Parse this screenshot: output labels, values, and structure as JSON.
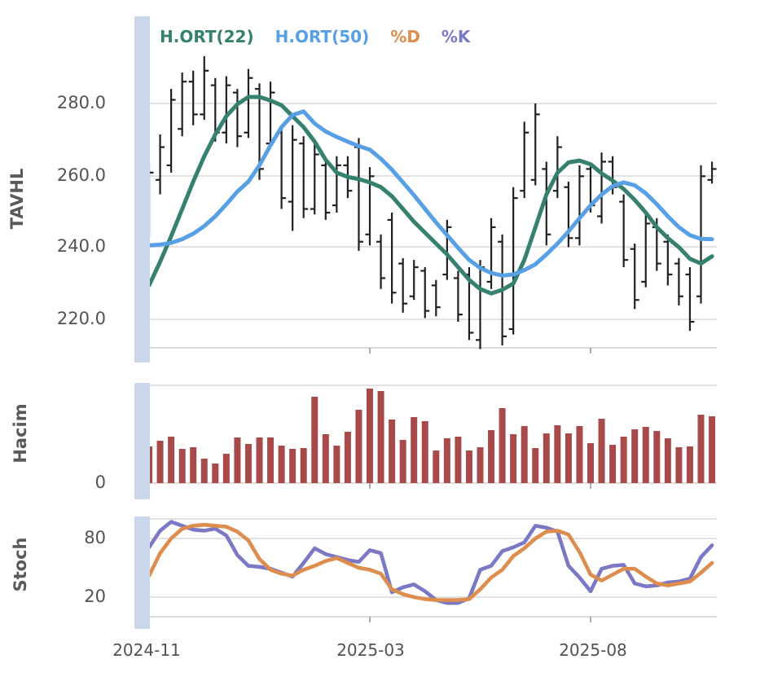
{
  "legend": {
    "items": [
      {
        "label": "H.ORT(22)",
        "color": "#35806e"
      },
      {
        "label": "H.ORT(50)",
        "color": "#57a0e6"
      },
      {
        "label": "%D",
        "color": "#dd8d4d"
      },
      {
        "label": "%K",
        "color": "#7b79c5"
      }
    ]
  },
  "panels": {
    "price": {
      "title": "TAVHL",
      "yticks": [
        "280.0",
        "260.0",
        "240.0",
        "220.0"
      ]
    },
    "volume": {
      "title": "Hacim",
      "yticks": [
        "0"
      ]
    },
    "stoch": {
      "title": "Stoch",
      "yticks": [
        "80",
        "20"
      ]
    }
  },
  "xaxis": {
    "labels": [
      "2024-11",
      "2025-03",
      "2025-08"
    ]
  },
  "colors": {
    "ohlc_bar": "#212121",
    "ma22": "#35806e",
    "ma50": "#57a0e6",
    "volume_bar": "#a84a4a",
    "stoch_d": "#dd8d4d",
    "stoch_k": "#7b79c5",
    "grid": "#d9d9d9",
    "band": "#cad6ea",
    "text": "#525252"
  },
  "chart_data": [
    {
      "type": "ohlc",
      "panel": "TAVHL",
      "ylabel": "TAVHL",
      "yticks": [
        280.0,
        260.0,
        240.0,
        220.0
      ],
      "ylim": [
        212.8,
        304.0
      ],
      "grid": true,
      "x_tick_labels": [
        "2024-11",
        "2025-03",
        "2025-08"
      ],
      "x_tick_bar_indices": [
        0,
        20,
        40
      ],
      "bars_high_low_open_close": [
        [
          263.5,
          243.5,
          246,
          261
        ],
        [
          271.5,
          255,
          259,
          268
        ],
        [
          284,
          261,
          263,
          281
        ],
        [
          288.5,
          271,
          273,
          286
        ],
        [
          289,
          274,
          286,
          277
        ],
        [
          293,
          275.5,
          277,
          289
        ],
        [
          287,
          269.5,
          285,
          272
        ],
        [
          287.5,
          269,
          272,
          285
        ],
        [
          284,
          268,
          283,
          271
        ],
        [
          289.5,
          270.5,
          272,
          287
        ],
        [
          285.5,
          259,
          284,
          262
        ],
        [
          286,
          268,
          269,
          283
        ],
        [
          273.5,
          251,
          272,
          254
        ],
        [
          274,
          245,
          253,
          270
        ],
        [
          271,
          248.5,
          269,
          251
        ],
        [
          270,
          249.5,
          251,
          266
        ],
        [
          264.5,
          248,
          263,
          250
        ],
        [
          265.5,
          250,
          252,
          263
        ],
        [
          265.5,
          254,
          263,
          256
        ],
        [
          270.5,
          239.5,
          268,
          242
        ],
        [
          262.5,
          241,
          244,
          260
        ],
        [
          244,
          229,
          242,
          232
        ],
        [
          250,
          225,
          248,
          228
        ],
        [
          237.5,
          222.5,
          236,
          225
        ],
        [
          237,
          226,
          227,
          235
        ],
        [
          235,
          221,
          234,
          223
        ],
        [
          231.5,
          221.5,
          230,
          224
        ],
        [
          248,
          231.5,
          233,
          246
        ],
        [
          234,
          220,
          232,
          222
        ],
        [
          235,
          215,
          233,
          217
        ],
        [
          237,
          212.5,
          215,
          235
        ],
        [
          248.5,
          229,
          231,
          246
        ],
        [
          244,
          213.5,
          242,
          216
        ],
        [
          257,
          216.5,
          218,
          254
        ],
        [
          275,
          254,
          256,
          272
        ],
        [
          280,
          257.5,
          259,
          277
        ],
        [
          264,
          241,
          262,
          244
        ],
        [
          271,
          254,
          256,
          268
        ],
        [
          258.5,
          240.5,
          257,
          243
        ],
        [
          263,
          241,
          243,
          260
        ],
        [
          263.5,
          250,
          262,
          252
        ],
        [
          266.5,
          247,
          249,
          264
        ],
        [
          265.5,
          255,
          264,
          257
        ],
        [
          255,
          235,
          253,
          237
        ],
        [
          241.5,
          223.5,
          240,
          226
        ],
        [
          250,
          229.5,
          231,
          247
        ],
        [
          248.5,
          234,
          246,
          236
        ],
        [
          244,
          230,
          242,
          233
        ],
        [
          237.5,
          224.5,
          236,
          227
        ],
        [
          235,
          217.5,
          233,
          220
        ],
        [
          263,
          225,
          227,
          260
        ],
        [
          264,
          258,
          259,
          262
        ]
      ],
      "series": [
        {
          "name": "H.ORT(22)",
          "color": "#35806e",
          "values": [
            230,
            236.5,
            243.5,
            251,
            258.5,
            265.5,
            271.5,
            276.5,
            279.8,
            281.8,
            281.8,
            280.8,
            279.5,
            276.5,
            273.5,
            269.5,
            264.5,
            261,
            259.8,
            259.2,
            258.3,
            257,
            254.5,
            251,
            247.5,
            244.5,
            241.5,
            238.5,
            235,
            231.5,
            229,
            227.8,
            228.8,
            230.5,
            237,
            246,
            255,
            261,
            263.8,
            264.3,
            263.3,
            260.8,
            258.8,
            256.5,
            253.5,
            250,
            246,
            243,
            240.5,
            237.3,
            236,
            238
          ]
        },
        {
          "name": "H.ORT(50)",
          "color": "#57a0e6",
          "values": [
            241,
            241.2,
            241.7,
            242.7,
            244.2,
            246.3,
            249,
            252.3,
            255.8,
            258.5,
            263,
            268.5,
            273.5,
            276.8,
            277.8,
            274.5,
            272.3,
            270.8,
            269.5,
            268.3,
            267.3,
            264.8,
            261.8,
            258.3,
            254.8,
            251,
            247.3,
            243.8,
            240.3,
            237,
            234.8,
            233.4,
            232.7,
            233,
            234.2,
            235.8,
            238.5,
            241.5,
            244.8,
            248.5,
            252,
            255,
            257.3,
            258.3,
            257.5,
            255.3,
            252.3,
            249,
            246,
            243.8,
            242.8,
            242.7
          ]
        }
      ]
    },
    {
      "type": "bar",
      "panel": "Hacim",
      "ylabel": "Hacim",
      "yticks": [
        0
      ],
      "unit": "px-height (axis shows only 0)",
      "values": [
        45,
        52,
        57,
        42,
        44,
        30,
        24,
        36,
        56,
        48,
        56,
        56,
        46,
        42,
        43,
        106,
        60,
        46,
        63,
        90,
        116,
        113,
        78,
        53,
        81,
        76,
        40,
        55,
        57,
        40,
        44,
        65,
        92,
        60,
        70,
        43,
        61,
        71,
        61,
        70,
        49,
        79,
        47,
        57,
        66,
        69,
        64,
        55,
        44,
        45,
        84,
        82
      ]
    },
    {
      "type": "line",
      "panel": "Stoch",
      "ylabel": "Stoch",
      "yticks": [
        80,
        20
      ],
      "ylim": [
        0,
        100
      ],
      "series": [
        {
          "name": "%K",
          "color": "#7b79c5",
          "values": [
            71,
            88,
            97,
            93,
            89,
            88,
            90,
            83,
            63,
            52,
            51,
            49,
            45,
            41,
            55,
            70,
            64,
            61,
            58,
            56,
            68,
            65,
            25,
            30,
            33,
            26,
            17,
            14,
            14,
            19,
            48,
            52,
            67,
            71,
            76,
            93,
            91,
            87,
            52,
            40,
            26,
            49,
            52,
            53,
            34,
            31,
            32,
            35,
            36,
            39,
            61,
            73
          ]
        },
        {
          "name": "%D",
          "color": "#dd8d4d",
          "values": [
            42,
            65,
            80,
            90,
            93,
            94,
            93,
            92,
            87,
            78,
            59,
            48,
            44,
            42,
            48,
            52,
            57,
            60,
            55,
            50,
            48,
            44,
            28,
            23,
            20,
            18,
            17,
            17,
            17,
            18,
            28,
            40,
            48,
            62,
            70,
            80,
            87,
            88,
            84,
            66,
            43,
            37,
            43,
            49,
            49,
            41,
            34,
            32,
            34,
            36,
            45,
            55
          ]
        }
      ]
    }
  ]
}
